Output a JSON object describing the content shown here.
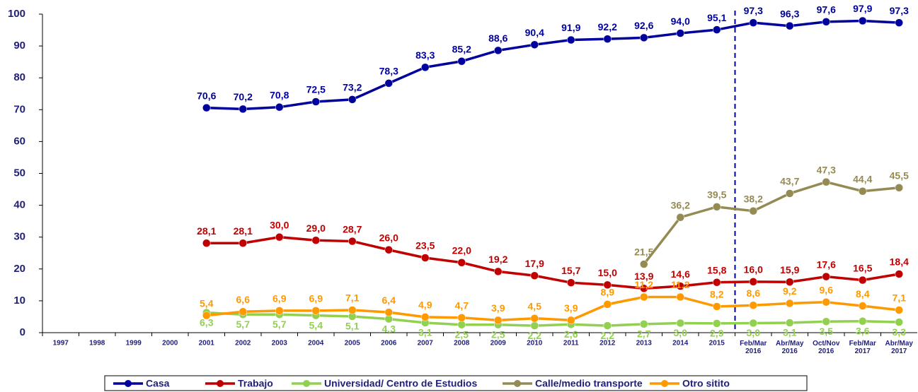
{
  "chart_data": {
    "type": "line",
    "categories": [
      "1997",
      "1998",
      "1999",
      "2000",
      "2001",
      "2002",
      "2003",
      "2004",
      "2005",
      "2006",
      "2007",
      "2008",
      "2009",
      "2010",
      "2011",
      "2012",
      "2013",
      "2014",
      "2015",
      "Feb/Mar\n2016",
      "Abr/May\n2016",
      "Oct/Nov\n2016",
      "Feb/Mar\n2017",
      "Abr/May\n2017"
    ],
    "ylim": [
      0,
      100
    ],
    "yticks": [
      0,
      10,
      20,
      30,
      40,
      50,
      60,
      70,
      80,
      90,
      100
    ],
    "series": [
      {
        "name": "Casa",
        "color": "#00009c",
        "label_side": "above",
        "values": [
          null,
          null,
          null,
          null,
          70.6,
          70.2,
          70.8,
          72.5,
          73.2,
          78.3,
          83.3,
          85.2,
          88.6,
          90.4,
          91.9,
          92.2,
          92.6,
          94.0,
          95.1,
          97.3,
          96.3,
          97.6,
          97.9,
          97.3
        ],
        "value_labels": [
          null,
          null,
          null,
          null,
          "70,6",
          "70,2",
          "70,8",
          "72,5",
          "73,2",
          "78,3",
          "83,3",
          "85,2",
          "88,6",
          "90,4",
          "91,9",
          "92,2",
          "92,6",
          "94,0",
          "95,1",
          "97,3",
          "96,3",
          "97,6",
          "97,9",
          "97,3"
        ]
      },
      {
        "name": "Trabajo",
        "color": "#c00000",
        "label_side": "above",
        "values": [
          null,
          null,
          null,
          null,
          28.1,
          28.1,
          30.0,
          29.0,
          28.7,
          26.0,
          23.5,
          22.0,
          19.2,
          17.9,
          15.7,
          15.0,
          13.9,
          14.6,
          15.8,
          16.0,
          15.9,
          17.6,
          16.5,
          18.4
        ],
        "value_labels": [
          null,
          null,
          null,
          null,
          "28,1",
          "28,1",
          "30,0",
          "29,0",
          "28,7",
          "26,0",
          "23,5",
          "22,0",
          "19,2",
          "17,9",
          "15,7",
          "15,0",
          "13,9",
          "14,6",
          "15,8",
          "16,0",
          "15,9",
          "17,6",
          "16,5",
          "18,4"
        ]
      },
      {
        "name": "Universidad/ Centro de Estudios",
        "color": "#92d050",
        "label_side": "below",
        "values": [
          null,
          null,
          null,
          null,
          6.3,
          5.7,
          5.7,
          5.4,
          5.1,
          4.3,
          3.1,
          2.5,
          2.5,
          2.2,
          2.6,
          2.2,
          2.7,
          3.0,
          2.9,
          3.0,
          3.1,
          3.5,
          3.6,
          3.3
        ],
        "value_labels": [
          null,
          null,
          null,
          null,
          "6,3",
          "5,7",
          "5,7",
          "5,4",
          "5,1",
          "4,3",
          "3,1",
          "2,5",
          "2,5",
          "2,2",
          "2,6",
          "2,2",
          "2,7",
          "3,0",
          "2,9",
          "3,0",
          "3,1",
          "3,5",
          "3,6",
          "3,3"
        ]
      },
      {
        "name": "Calle/medio transporte",
        "color": "#948a54",
        "label_side": "above",
        "values": [
          null,
          null,
          null,
          null,
          null,
          null,
          null,
          null,
          null,
          null,
          null,
          null,
          null,
          null,
          null,
          null,
          21.5,
          36.2,
          39.5,
          38.2,
          43.7,
          47.3,
          44.4,
          45.5
        ],
        "value_labels": [
          null,
          null,
          null,
          null,
          null,
          null,
          null,
          null,
          null,
          null,
          null,
          null,
          null,
          null,
          null,
          null,
          "21,5",
          "36,2",
          "39,5",
          "38,2",
          "43,7",
          "47,3",
          "44,4",
          "45,5"
        ]
      },
      {
        "name": "Otro sitito",
        "color": "#ff9900",
        "label_side": "above",
        "values": [
          null,
          null,
          null,
          null,
          5.4,
          6.6,
          6.9,
          6.9,
          7.1,
          6.4,
          4.9,
          4.7,
          3.9,
          4.5,
          3.9,
          8.9,
          11.2,
          11.2,
          8.2,
          8.6,
          9.2,
          9.6,
          8.4,
          7.1
        ],
        "value_labels": [
          null,
          null,
          null,
          null,
          "5,4",
          "6,6",
          "6,9",
          "6,9",
          "7,1",
          "6,4",
          "4,9",
          "4,7",
          "3,9",
          "4,5",
          "3,9",
          "8,9",
          "11,2",
          "11,2",
          "8,2",
          "8,6",
          "9,2",
          "9,6",
          "8,4",
          "7,1"
        ]
      }
    ]
  }
}
